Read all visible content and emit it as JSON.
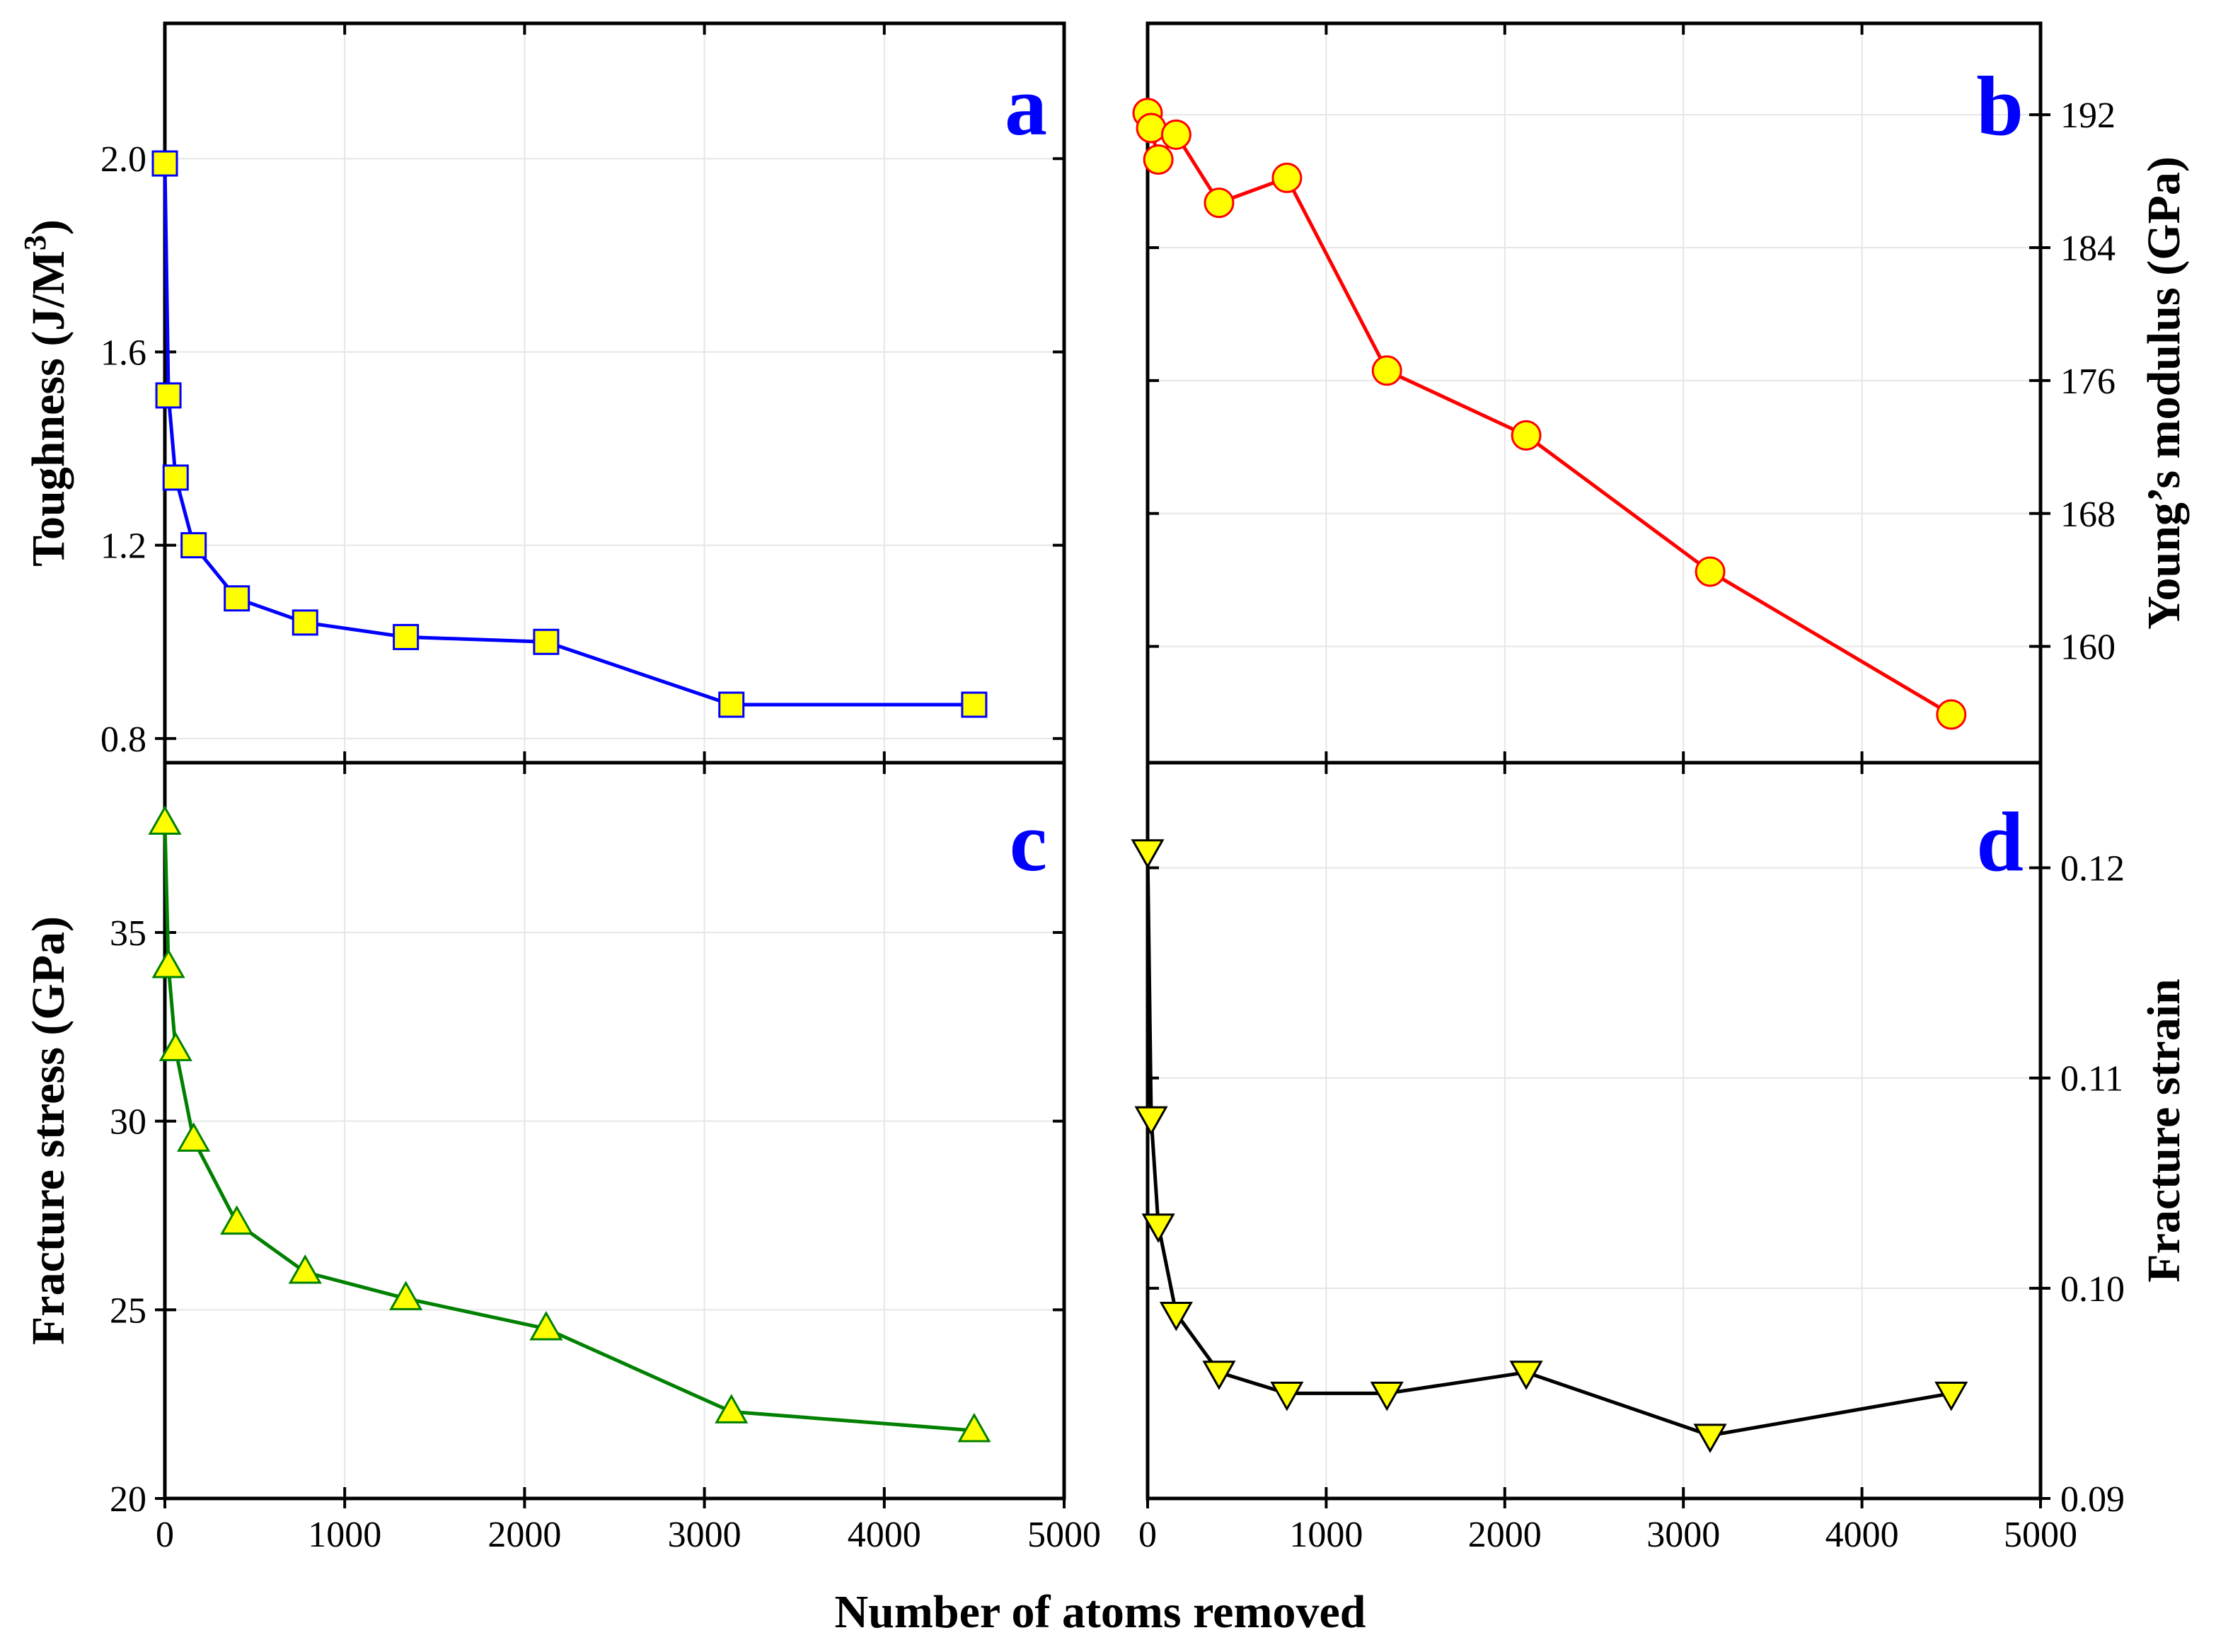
{
  "figure": {
    "xlabel": "Number of atoms removed",
    "colors": {
      "axis": "#000000",
      "grid": "#e6e6e6",
      "marker_fill": "#ffff00"
    }
  },
  "chart_data": [
    {
      "panel": "a",
      "type": "line",
      "series": [
        {
          "name": "Toughness",
          "color": "#0000ff",
          "marker": "square",
          "x": [
            0,
            20,
            60,
            160,
            400,
            780,
            1340,
            2120,
            3150,
            4500
          ],
          "values": [
            1.99,
            1.51,
            1.34,
            1.2,
            1.09,
            1.04,
            1.01,
            1.0,
            0.87,
            0.87
          ]
        }
      ],
      "ylabel": "Toughness (J/M³)",
      "ylabel_parts": {
        "main": "Toughness (J/M",
        "sup": "3",
        "tail": ")"
      },
      "yticks": [
        0.8,
        1.2,
        1.6,
        2.0
      ],
      "ytick_labels": [
        "0.8",
        "1.2",
        "1.6",
        "2.0"
      ],
      "ylim": [
        0.75,
        2.28
      ],
      "xlim": [
        0,
        5000
      ],
      "y_side": "left"
    },
    {
      "panel": "b",
      "type": "line",
      "series": [
        {
          "name": "Young's modulus",
          "color": "#ff0000",
          "marker": "circle",
          "x": [
            0,
            20,
            60,
            160,
            400,
            780,
            1340,
            2120,
            3150,
            4500
          ],
          "values": [
            192.1,
            191.2,
            189.3,
            190.8,
            186.7,
            188.2,
            176.6,
            172.7,
            164.5,
            155.9
          ]
        }
      ],
      "ylabel": "Young’s modulus (GPa)",
      "yticks": [
        160,
        168,
        176,
        184,
        192
      ],
      "ytick_labels": [
        "160",
        "168",
        "176",
        "184",
        "192"
      ],
      "ylim": [
        153,
        197.5
      ],
      "xlim": [
        0,
        5000
      ],
      "y_side": "right"
    },
    {
      "panel": "c",
      "type": "line",
      "series": [
        {
          "name": "Fracture stress",
          "color": "#008000",
          "marker": "triangle-up",
          "x": [
            0,
            20,
            60,
            160,
            400,
            780,
            1340,
            2120,
            3150,
            4500
          ],
          "values": [
            37.9,
            34.1,
            31.9,
            29.5,
            27.3,
            26.0,
            25.3,
            24.5,
            22.3,
            21.8
          ]
        }
      ],
      "ylabel": "Fracture stress (GPa)",
      "yticks": [
        20,
        25,
        30,
        35
      ],
      "ytick_labels": [
        "20",
        "25",
        "30",
        "35"
      ],
      "ylim": [
        20,
        39.5
      ],
      "xticks": [
        0,
        1000,
        2000,
        3000,
        4000,
        5000
      ],
      "xtick_labels": [
        "0",
        "1000",
        "2000",
        "3000",
        "4000",
        "5000"
      ],
      "xlim": [
        0,
        5000
      ],
      "y_side": "left"
    },
    {
      "panel": "d",
      "type": "line",
      "series": [
        {
          "name": "Fracture strain",
          "color": "#000000",
          "marker": "triangle-down",
          "x": [
            0,
            20,
            60,
            160,
            400,
            780,
            1340,
            2120,
            3150,
            4500
          ],
          "values": [
            0.1208,
            0.1081,
            0.103,
            0.0988,
            0.096,
            0.095,
            0.095,
            0.096,
            0.093,
            0.095
          ]
        }
      ],
      "ylabel": "Fracture strain",
      "yticks": [
        0.09,
        0.1,
        0.11,
        0.12
      ],
      "ytick_labels": [
        "0.09",
        "0.10",
        "0.11",
        "0.12"
      ],
      "ylim": [
        0.09,
        0.125
      ],
      "xticks": [
        0,
        1000,
        2000,
        3000,
        4000,
        5000
      ],
      "xtick_labels": [
        "0",
        "1000",
        "2000",
        "3000",
        "4000",
        "5000"
      ],
      "xlim": [
        0,
        5000
      ],
      "y_side": "right"
    }
  ]
}
